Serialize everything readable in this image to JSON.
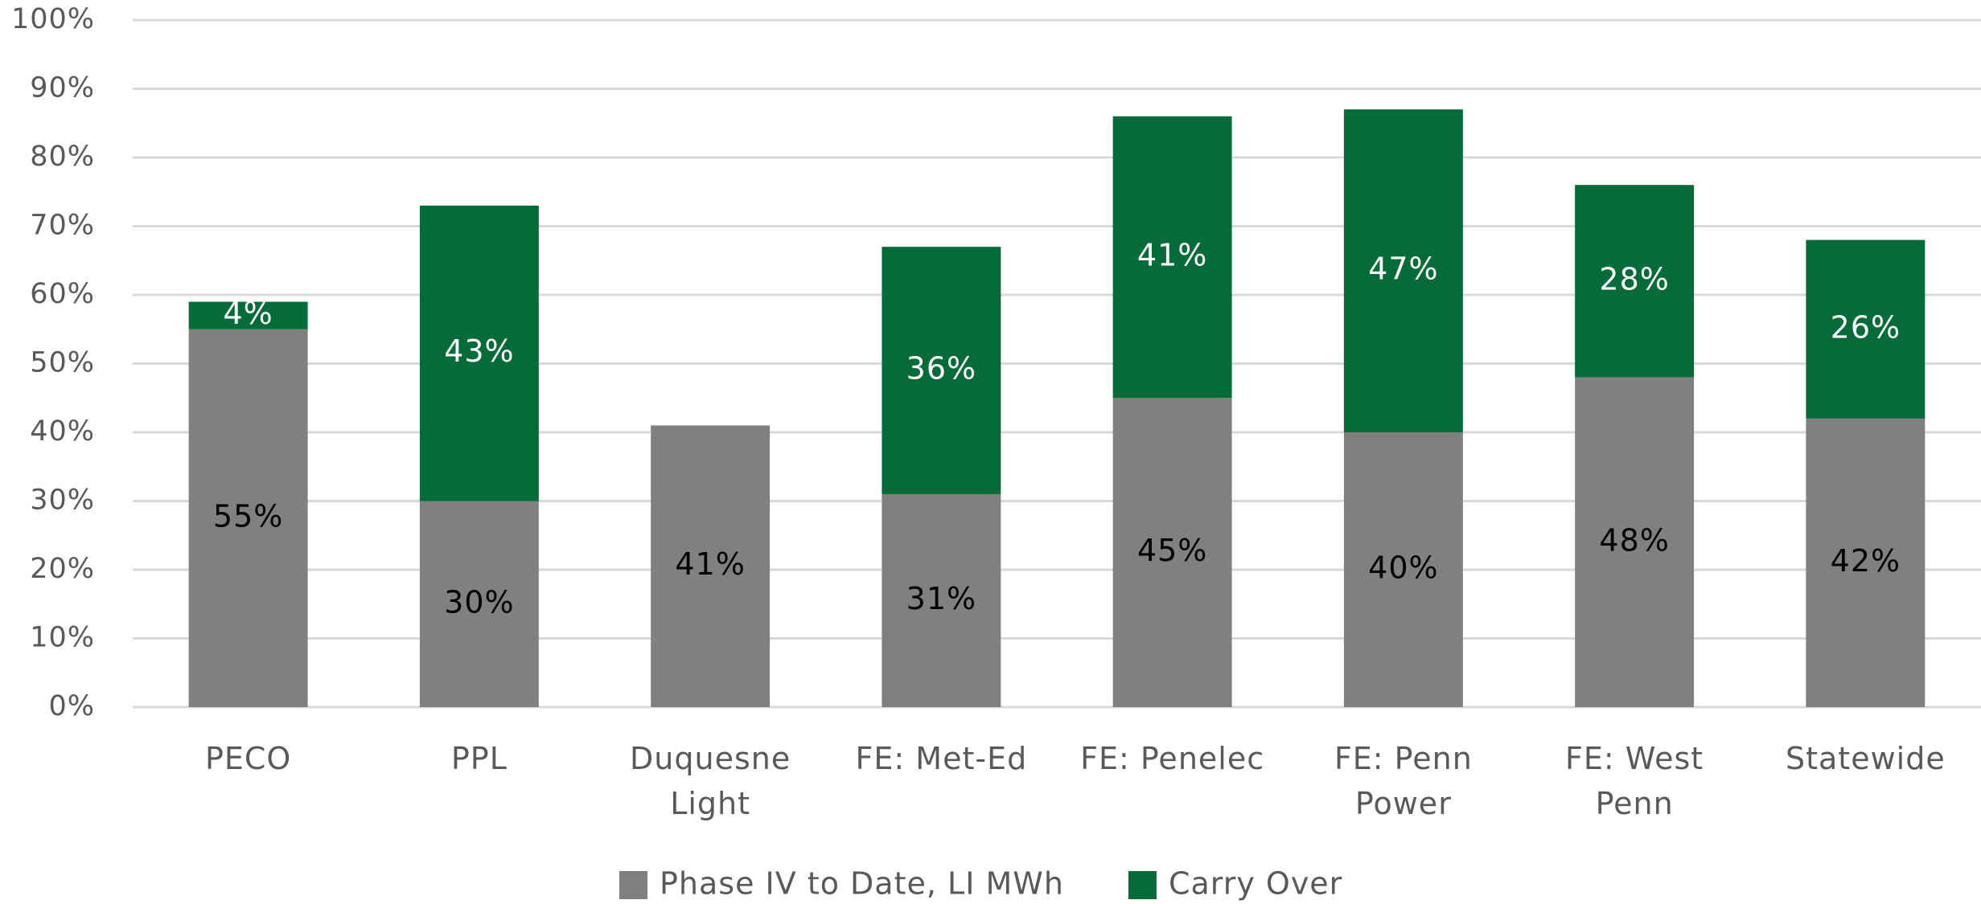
{
  "chart_data": {
    "type": "stacked_bar",
    "categories": [
      "PECO",
      "PPL",
      "Duquesne Light",
      "FE: Met-Ed",
      "FE: Penelec",
      "FE: Penn Power",
      "FE: West Penn",
      "Statewide"
    ],
    "series": [
      {
        "name": "Phase IV to Date, LI MWh",
        "color": "#808080",
        "label_color": "#000000",
        "values": [
          55,
          30,
          41,
          31,
          45,
          40,
          48,
          42
        ],
        "value_labels": [
          "55%",
          "30%",
          "41%",
          "31%",
          "45%",
          "40%",
          "48%",
          "42%"
        ]
      },
      {
        "name": "Carry Over",
        "color": "#056b38",
        "label_color": "#ffffff",
        "values": [
          4,
          43,
          null,
          36,
          41,
          47,
          28,
          26
        ],
        "value_labels": [
          "4%",
          "43%",
          null,
          "36%",
          "41%",
          "47%",
          "28%",
          "26%"
        ]
      }
    ],
    "ylim": [
      0,
      100
    ],
    "yticks": [
      {
        "value": 0,
        "label": "0%"
      },
      {
        "value": 10,
        "label": "10%"
      },
      {
        "value": 20,
        "label": "20%"
      },
      {
        "value": 30,
        "label": "30%"
      },
      {
        "value": 40,
        "label": "40%"
      },
      {
        "value": 50,
        "label": "50%"
      },
      {
        "value": 60,
        "label": "60%"
      },
      {
        "value": 70,
        "label": "70%"
      },
      {
        "value": 80,
        "label": "80%"
      },
      {
        "value": 90,
        "label": "90%"
      },
      {
        "value": 100,
        "label": "100%"
      }
    ],
    "grid": true,
    "legend": "bottom"
  }
}
